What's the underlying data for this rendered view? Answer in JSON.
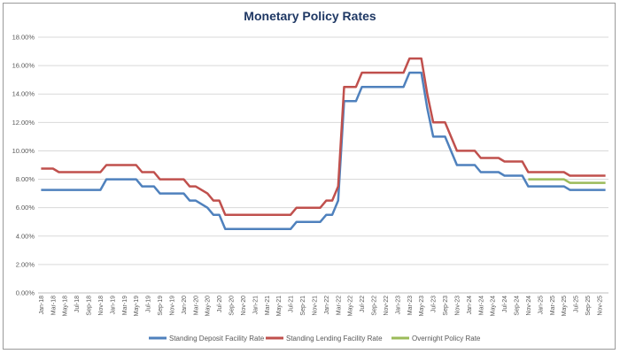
{
  "chart_data": {
    "type": "line",
    "title": "Monetary Policy Rates",
    "xlabel": "",
    "ylabel": "",
    "ylim": [
      0,
      18
    ],
    "y_ticks": [
      "0.00%",
      "2.00%",
      "4.00%",
      "6.00%",
      "8.00%",
      "10.00%",
      "12.00%",
      "14.00%",
      "16.00%",
      "18.00%"
    ],
    "x_ticks": [
      "Jan-18",
      "Mar-18",
      "May-18",
      "Jul-18",
      "Sep-18",
      "Nov-18",
      "Jan-19",
      "Mar-19",
      "May-19",
      "Jul-19",
      "Sep-19",
      "Nov-19",
      "Jan-20",
      "Mar-20",
      "May-20",
      "Jul-20",
      "Sep-20",
      "Nov-20",
      "Jan-21",
      "Mar-21",
      "May-21",
      "Jul-21",
      "Sep-21",
      "Nov-21",
      "Jan-22",
      "Mar-22",
      "May-22",
      "Jul-22",
      "Sep-22",
      "Nov-22",
      "Jan-23",
      "Mar-23",
      "May-23",
      "Jul-23",
      "Sep-23",
      "Nov-23",
      "Jan-24",
      "Mar-24",
      "May-24",
      "Jul-24",
      "Sep-24",
      "Nov-24",
      "Jan-25",
      "Mar-25",
      "May-25",
      "Jul-25",
      "Sep-25",
      "Nov-25"
    ],
    "x_months_total": 96,
    "grid": true,
    "legend_position": "bottom",
    "series": [
      {
        "name": "Standing Deposit Facility Rate",
        "color": "#4f81bd",
        "points": [
          [
            0,
            7.25
          ],
          [
            2,
            7.25
          ],
          [
            3,
            7.25
          ],
          [
            10,
            7.25
          ],
          [
            11,
            8.0
          ],
          [
            16,
            8.0
          ],
          [
            17,
            7.5
          ],
          [
            19,
            7.5
          ],
          [
            20,
            7.0
          ],
          [
            24,
            7.0
          ],
          [
            25,
            6.5
          ],
          [
            26,
            6.5
          ],
          [
            28,
            6.0
          ],
          [
            29,
            5.5
          ],
          [
            30,
            5.5
          ],
          [
            31,
            4.5
          ],
          [
            42,
            4.5
          ],
          [
            43,
            5.0
          ],
          [
            47,
            5.0
          ],
          [
            48,
            5.5
          ],
          [
            49,
            5.5
          ],
          [
            50,
            6.5
          ],
          [
            51,
            13.5
          ],
          [
            53,
            13.5
          ],
          [
            54,
            14.5
          ],
          [
            61,
            14.5
          ],
          [
            62,
            15.5
          ],
          [
            64,
            15.5
          ],
          [
            65,
            13.0
          ],
          [
            66,
            11.0
          ],
          [
            68,
            11.0
          ],
          [
            70,
            9.0
          ],
          [
            73,
            9.0
          ],
          [
            74,
            8.5
          ],
          [
            77,
            8.5
          ],
          [
            78,
            8.25
          ],
          [
            81,
            8.25
          ],
          [
            82,
            7.5
          ],
          [
            88,
            7.5
          ],
          [
            89,
            7.25
          ],
          [
            95,
            7.25
          ]
        ]
      },
      {
        "name": "Standing Lending Facility Rate",
        "color": "#c0504d",
        "points": [
          [
            0,
            8.75
          ],
          [
            2,
            8.75
          ],
          [
            3,
            8.5
          ],
          [
            10,
            8.5
          ],
          [
            11,
            9.0
          ],
          [
            16,
            9.0
          ],
          [
            17,
            8.5
          ],
          [
            19,
            8.5
          ],
          [
            20,
            8.0
          ],
          [
            24,
            8.0
          ],
          [
            25,
            7.5
          ],
          [
            26,
            7.5
          ],
          [
            28,
            7.0
          ],
          [
            29,
            6.5
          ],
          [
            30,
            6.5
          ],
          [
            31,
            5.5
          ],
          [
            42,
            5.5
          ],
          [
            43,
            6.0
          ],
          [
            47,
            6.0
          ],
          [
            48,
            6.5
          ],
          [
            49,
            6.5
          ],
          [
            50,
            7.5
          ],
          [
            51,
            14.5
          ],
          [
            53,
            14.5
          ],
          [
            54,
            15.5
          ],
          [
            61,
            15.5
          ],
          [
            62,
            16.5
          ],
          [
            64,
            16.5
          ],
          [
            65,
            14.0
          ],
          [
            66,
            12.0
          ],
          [
            68,
            12.0
          ],
          [
            70,
            10.0
          ],
          [
            73,
            10.0
          ],
          [
            74,
            9.5
          ],
          [
            77,
            9.5
          ],
          [
            78,
            9.25
          ],
          [
            81,
            9.25
          ],
          [
            82,
            8.5
          ],
          [
            88,
            8.5
          ],
          [
            89,
            8.25
          ],
          [
            95,
            8.25
          ]
        ]
      },
      {
        "name": "Overnight Policy Rate",
        "color": "#9bbb59",
        "points": [
          [
            82,
            8.0
          ],
          [
            88,
            8.0
          ],
          [
            89,
            7.75
          ],
          [
            95,
            7.75
          ]
        ]
      }
    ]
  }
}
